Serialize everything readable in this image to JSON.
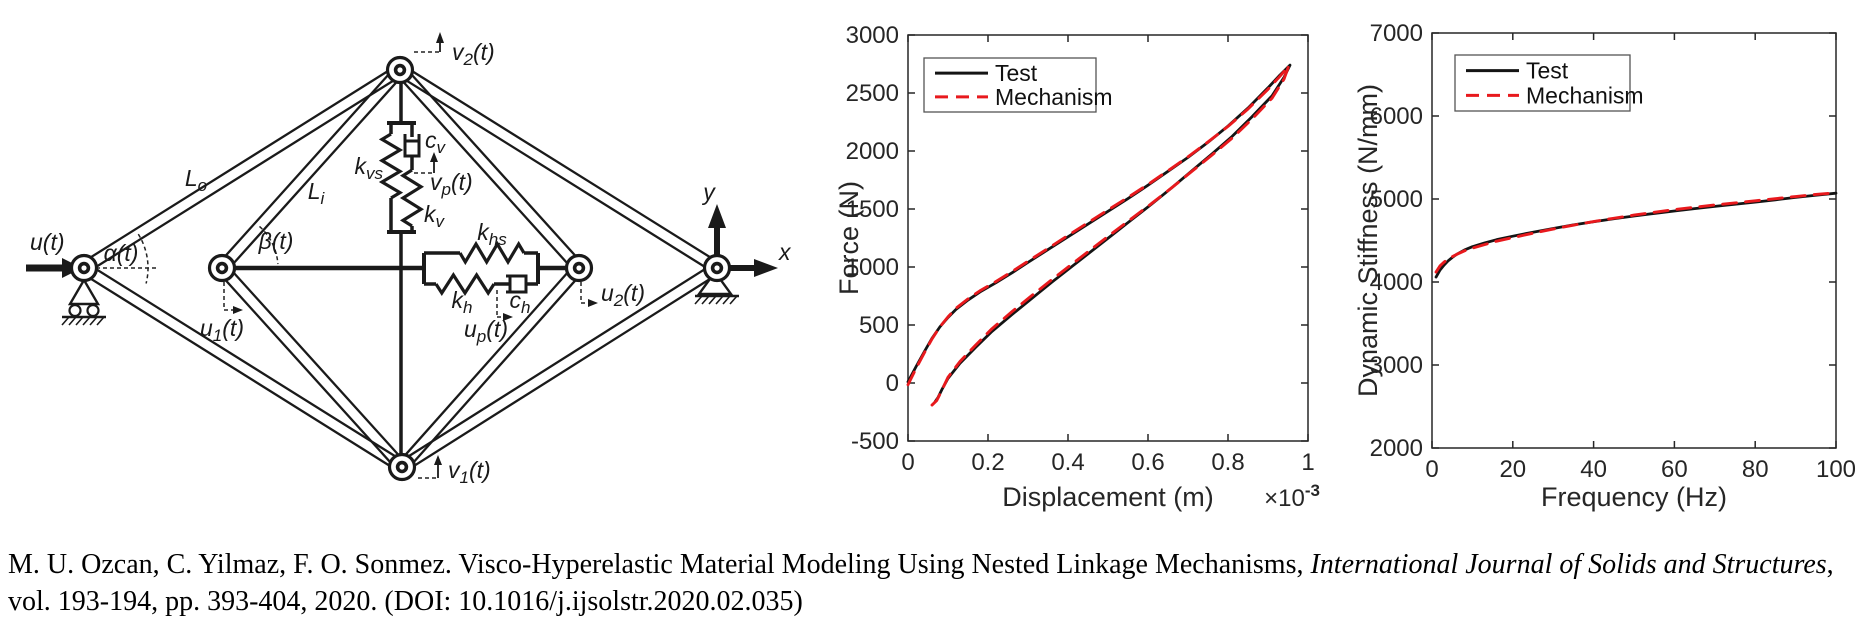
{
  "accent_colors": {
    "test_black": "#141414",
    "mechanism_red": "#e8191d",
    "axis_gray": "#262626"
  },
  "mechanism": {
    "labels": {
      "u": "u(t)",
      "alpha": "α(t)",
      "beta": "β(t)",
      "Lo": {
        "pre": "L",
        "sub": "o",
        "post": ""
      },
      "Li": {
        "pre": "L",
        "sub": "i",
        "post": ""
      },
      "u1": {
        "pre": "u",
        "sub": "1",
        "post": "(t)"
      },
      "u2": {
        "pre": "u",
        "sub": "2",
        "post": "(t)"
      },
      "v1": {
        "pre": "v",
        "sub": "1",
        "post": "(t)"
      },
      "v2": {
        "pre": "v",
        "sub": "2",
        "post": "(t)"
      },
      "up": {
        "pre": "u",
        "sub": "p",
        "post": "(t)"
      },
      "vp": {
        "pre": "v",
        "sub": "p",
        "post": "(t)"
      },
      "kvs": {
        "pre": "k",
        "sub": "vs",
        "post": ""
      },
      "kv": {
        "pre": "k",
        "sub": "v",
        "post": ""
      },
      "cv": {
        "pre": "c",
        "sub": "v",
        "post": ""
      },
      "khs": {
        "pre": "k",
        "sub": "hs",
        "post": ""
      },
      "kh": {
        "pre": "k",
        "sub": "h",
        "post": ""
      },
      "ch": {
        "pre": "c",
        "sub": "h",
        "post": ""
      },
      "x_axis": "x",
      "y_axis": "y"
    }
  },
  "chart_data": [
    {
      "type": "line",
      "name": "force-displacement",
      "xlabel": "Displacement (m)",
      "ylabel": "Force (N)",
      "x_multiplier": {
        "base": "×10",
        "exp": "-3"
      },
      "xlim": [
        0,
        1
      ],
      "ylim": [
        -500,
        3000
      ],
      "xticks": [
        0,
        0.2,
        0.4,
        0.6,
        0.8,
        1
      ],
      "xtick_labels": [
        "0",
        "0.2",
        "0.4",
        "0.6",
        "0.8",
        "1"
      ],
      "yticks": [
        -500,
        0,
        500,
        1000,
        1500,
        2000,
        2500,
        3000
      ],
      "ytick_labels": [
        "-500",
        "0",
        "500",
        "1000",
        "1500",
        "2000",
        "2500",
        "3000"
      ],
      "grid": false,
      "legend_position": "top-left",
      "series": [
        {
          "name": "Test",
          "color": "#141414",
          "style": "solid",
          "width": 2.8,
          "points": [
            [
              0,
              10
            ],
            [
              0.02,
              140
            ],
            [
              0.04,
              265
            ],
            [
              0.06,
              385
            ],
            [
              0.08,
              485
            ],
            [
              0.1,
              565
            ],
            [
              0.12,
              635
            ],
            [
              0.15,
              715
            ],
            [
              0.18,
              785
            ],
            [
              0.22,
              865
            ],
            [
              0.26,
              950
            ],
            [
              0.3,
              1040
            ],
            [
              0.35,
              1150
            ],
            [
              0.4,
              1260
            ],
            [
              0.45,
              1370
            ],
            [
              0.5,
              1480
            ],
            [
              0.55,
              1590
            ],
            [
              0.6,
              1705
            ],
            [
              0.65,
              1825
            ],
            [
              0.7,
              1945
            ],
            [
              0.75,
              2075
            ],
            [
              0.8,
              2215
            ],
            [
              0.85,
              2370
            ],
            [
              0.9,
              2545
            ],
            [
              0.93,
              2655
            ],
            [
              0.955,
              2740
            ],
            [
              0.94,
              2635
            ],
            [
              0.91,
              2475
            ],
            [
              0.86,
              2295
            ],
            [
              0.81,
              2125
            ],
            [
              0.76,
              1975
            ],
            [
              0.71,
              1830
            ],
            [
              0.66,
              1685
            ],
            [
              0.61,
              1545
            ],
            [
              0.56,
              1410
            ],
            [
              0.51,
              1275
            ],
            [
              0.46,
              1140
            ],
            [
              0.41,
              1005
            ],
            [
              0.36,
              870
            ],
            [
              0.31,
              730
            ],
            [
              0.26,
              590
            ],
            [
              0.21,
              445
            ],
            [
              0.17,
              310
            ],
            [
              0.13,
              170
            ],
            [
              0.1,
              40
            ],
            [
              0.085,
              -55
            ],
            [
              0.075,
              -125
            ],
            [
              0.068,
              -160
            ]
          ]
        },
        {
          "name": "Mechanism",
          "color": "#e8191d",
          "style": "dashed",
          "width": 2.9,
          "points": [
            [
              0,
              -15
            ],
            [
              0.02,
              125
            ],
            [
              0.04,
              255
            ],
            [
              0.06,
              380
            ],
            [
              0.08,
              485
            ],
            [
              0.1,
              570
            ],
            [
              0.12,
              645
            ],
            [
              0.15,
              725
            ],
            [
              0.18,
              795
            ],
            [
              0.22,
              875
            ],
            [
              0.26,
              960
            ],
            [
              0.3,
              1050
            ],
            [
              0.35,
              1160
            ],
            [
              0.4,
              1272
            ],
            [
              0.45,
              1382
            ],
            [
              0.5,
              1492
            ],
            [
              0.55,
              1600
            ],
            [
              0.6,
              1712
            ],
            [
              0.65,
              1830
            ],
            [
              0.7,
              1950
            ],
            [
              0.75,
              2078
            ],
            [
              0.8,
              2212
            ],
            [
              0.85,
              2362
            ],
            [
              0.9,
              2532
            ],
            [
              0.93,
              2645
            ],
            [
              0.952,
              2735
            ],
            [
              0.94,
              2620
            ],
            [
              0.91,
              2455
            ],
            [
              0.86,
              2275
            ],
            [
              0.81,
              2110
            ],
            [
              0.76,
              1965
            ],
            [
              0.71,
              1825
            ],
            [
              0.66,
              1685
            ],
            [
              0.61,
              1550
            ],
            [
              0.56,
              1420
            ],
            [
              0.51,
              1290
            ],
            [
              0.46,
              1158
            ],
            [
              0.41,
              1025
            ],
            [
              0.36,
              892
            ],
            [
              0.31,
              755
            ],
            [
              0.26,
              615
            ],
            [
              0.21,
              468
            ],
            [
              0.17,
              330
            ],
            [
              0.13,
              185
            ],
            [
              0.1,
              50
            ],
            [
              0.085,
              -60
            ],
            [
              0.072,
              -150
            ],
            [
              0.06,
              -190
            ]
          ]
        }
      ]
    },
    {
      "type": "line",
      "name": "dynamic-stiffness",
      "xlabel": "Frequency (Hz)",
      "ylabel": "Dynamic Stiffness (N/mm)",
      "xlim": [
        0,
        100
      ],
      "ylim": [
        2000,
        7000
      ],
      "xticks": [
        0,
        20,
        40,
        60,
        80,
        100
      ],
      "xtick_labels": [
        "0",
        "20",
        "40",
        "60",
        "80",
        "100"
      ],
      "yticks": [
        2000,
        3000,
        4000,
        5000,
        6000,
        7000
      ],
      "ytick_labels": [
        "2000",
        "3000",
        "4000",
        "5000",
        "6000",
        "7000"
      ],
      "grid": false,
      "legend_position": "top-left",
      "series": [
        {
          "name": "Test",
          "color": "#141414",
          "style": "solid",
          "width": 2.8,
          "points": [
            [
              1,
              4060
            ],
            [
              2,
              4145
            ],
            [
              3,
              4205
            ],
            [
              4,
              4255
            ],
            [
              5,
              4295
            ],
            [
              6,
              4330
            ],
            [
              8,
              4385
            ],
            [
              10,
              4425
            ],
            [
              13,
              4470
            ],
            [
              16,
              4510
            ],
            [
              20,
              4552
            ],
            [
              25,
              4600
            ],
            [
              30,
              4645
            ],
            [
              35,
              4688
            ],
            [
              40,
              4726
            ],
            [
              45,
              4762
            ],
            [
              50,
              4795
            ],
            [
              55,
              4826
            ],
            [
              60,
              4856
            ],
            [
              65,
              4884
            ],
            [
              70,
              4911
            ],
            [
              75,
              4937
            ],
            [
              80,
              4962
            ],
            [
              85,
              4990
            ],
            [
              90,
              5020
            ],
            [
              95,
              5045
            ],
            [
              100,
              5070
            ]
          ]
        },
        {
          "name": "Mechanism",
          "color": "#e8191d",
          "style": "dashed",
          "width": 2.9,
          "points": [
            [
              1,
              4120
            ],
            [
              2,
              4195
            ],
            [
              3,
              4240
            ],
            [
              4,
              4275
            ],
            [
              5,
              4305
            ],
            [
              6,
              4330
            ],
            [
              8,
              4375
            ],
            [
              10,
              4408
            ],
            [
              13,
              4450
            ],
            [
              16,
              4492
            ],
            [
              20,
              4535
            ],
            [
              25,
              4588
            ],
            [
              30,
              4638
            ],
            [
              35,
              4685
            ],
            [
              40,
              4728
            ],
            [
              45,
              4768
            ],
            [
              50,
              4806
            ],
            [
              55,
              4840
            ],
            [
              60,
              4872
            ],
            [
              65,
              4900
            ],
            [
              70,
              4928
            ],
            [
              75,
              4952
            ],
            [
              80,
              4978
            ],
            [
              85,
              5004
            ],
            [
              90,
              5030
            ],
            [
              95,
              5055
            ],
            [
              100,
              5075
            ]
          ]
        }
      ]
    }
  ],
  "citation": {
    "line1_roman": "M. U. Ozcan, C. Yilmaz, F. O. Sonmez. Visco-Hyperelastic Material Modeling Using Nested Linkage Mechanisms, ",
    "line1_italic": "International Journal of Solids and Structures",
    "line1_tail": ",",
    "line2": "vol. 193-194, pp. 393-404, 2020. (DOI: 10.1016/j.ijsolstr.2020.02.035)"
  }
}
